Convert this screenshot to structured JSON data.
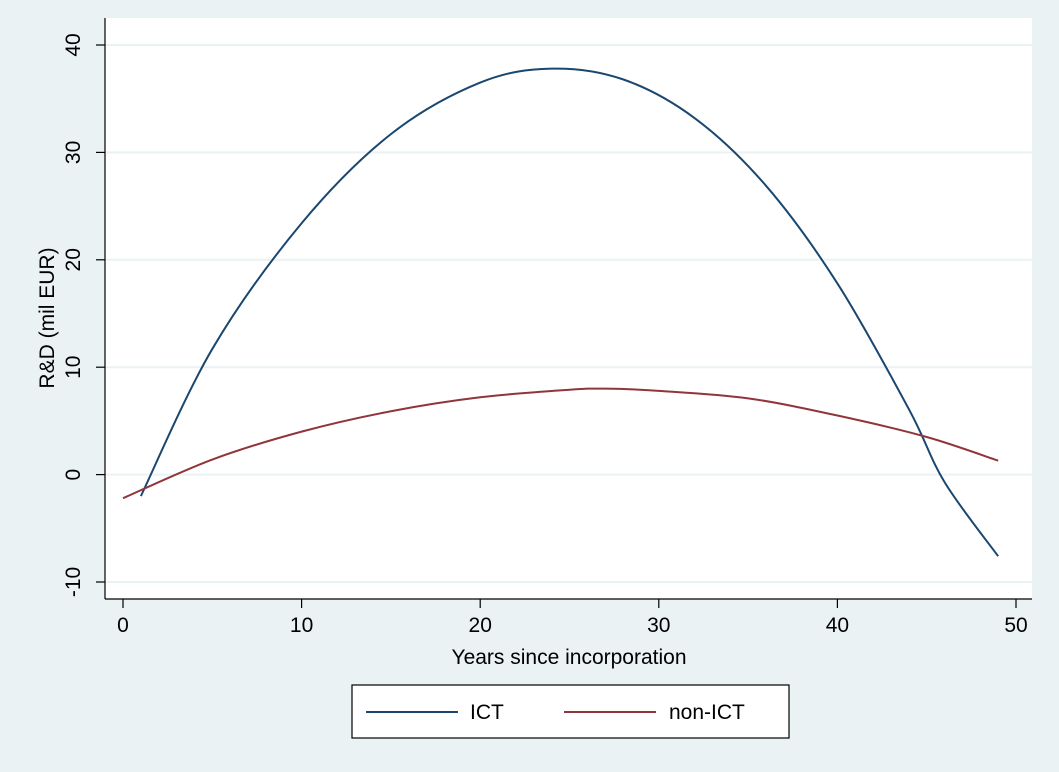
{
  "chart_data": {
    "type": "line",
    "xlabel": "Years since incorporation",
    "ylabel": "R&D (mil EUR)",
    "xlim": [
      0,
      50
    ],
    "ylim": [
      -10,
      40
    ],
    "x_ticks": [
      0,
      10,
      20,
      30,
      40,
      50
    ],
    "y_ticks": [
      -10,
      0,
      10,
      20,
      30,
      40
    ],
    "x_tick_labels": [
      "0",
      "10",
      "20",
      "30",
      "40",
      "50"
    ],
    "y_tick_labels": [
      "-10",
      "0",
      "10",
      "20",
      "30",
      "40"
    ],
    "grid": true,
    "legend_position": "bottom",
    "series": [
      {
        "name": "ICT",
        "color": "#1a476f",
        "x": [
          1,
          5,
          10,
          15,
          20,
          24,
          28,
          32,
          36,
          40,
          44,
          46,
          49
        ],
        "y": [
          -2.0,
          11.7,
          23.4,
          31.7,
          36.5,
          37.8,
          36.8,
          33.2,
          26.9,
          17.8,
          6.1,
          -0.7,
          -7.6
        ]
      },
      {
        "name": "non-ICT",
        "color": "#90353b",
        "x": [
          0,
          5,
          10,
          15,
          20,
          25,
          27,
          30,
          35,
          40,
          45,
          49
        ],
        "y": [
          -2.2,
          1.4,
          4.0,
          5.9,
          7.2,
          7.9,
          8.0,
          7.8,
          7.1,
          5.5,
          3.5,
          1.3
        ]
      }
    ]
  }
}
